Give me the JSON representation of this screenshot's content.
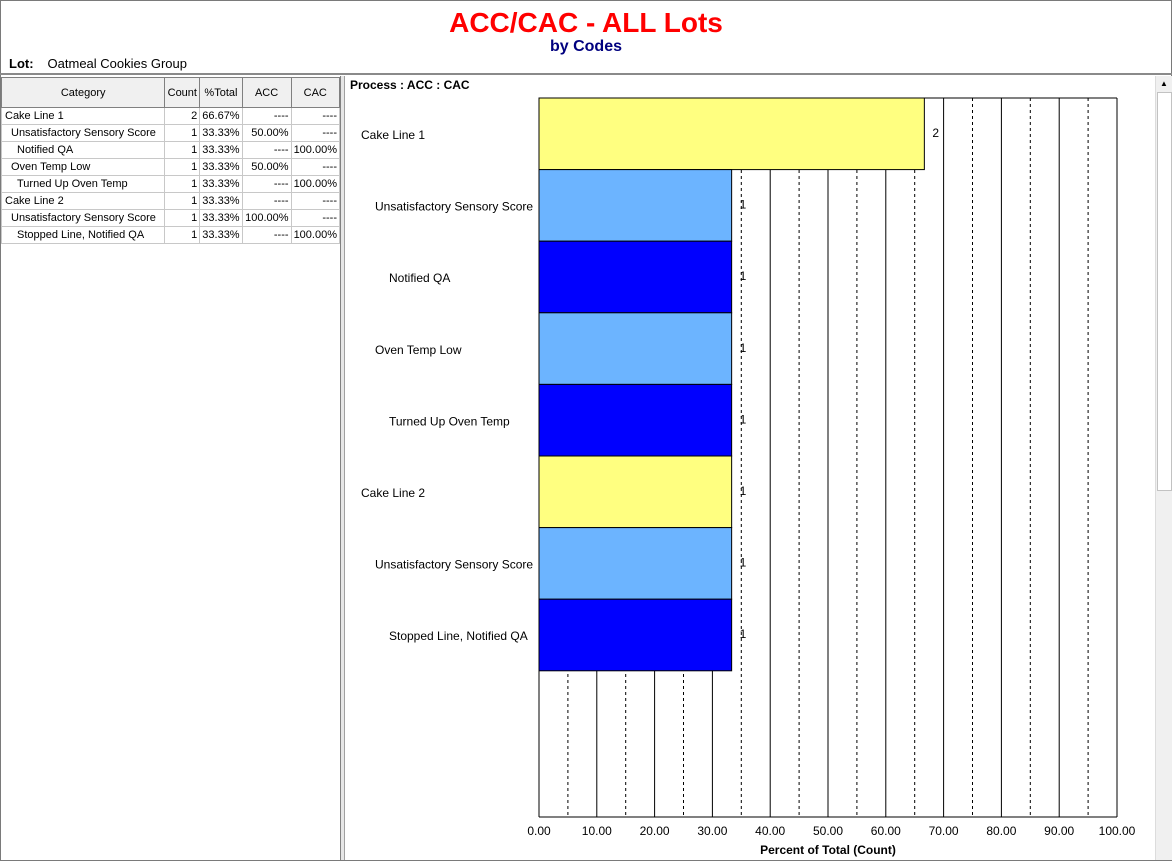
{
  "header": {
    "title": "ACC/CAC - ALL Lots",
    "subtitle": "by Codes",
    "lot_label": "Lot:",
    "lot_value": "Oatmeal Cookies Group"
  },
  "table": {
    "columns": [
      "Category",
      "Count",
      "%Total",
      "ACC",
      "CAC"
    ],
    "rows": [
      {
        "category": "Cake Line 1",
        "level": 0,
        "count": "2",
        "pct": "66.67%",
        "acc": "----",
        "cac": "----"
      },
      {
        "category": "Unsatisfactory Sensory Score",
        "level": 1,
        "count": "1",
        "pct": "33.33%",
        "acc": "50.00%",
        "cac": "----"
      },
      {
        "category": "Notified QA",
        "level": 2,
        "count": "1",
        "pct": "33.33%",
        "acc": "----",
        "cac": "100.00%"
      },
      {
        "category": "Oven Temp Low",
        "level": 1,
        "count": "1",
        "pct": "33.33%",
        "acc": "50.00%",
        "cac": "----"
      },
      {
        "category": "Turned Up Oven Temp",
        "level": 2,
        "count": "1",
        "pct": "33.33%",
        "acc": "----",
        "cac": "100.00%"
      },
      {
        "category": "Cake Line 2",
        "level": 0,
        "count": "1",
        "pct": "33.33%",
        "acc": "----",
        "cac": "----"
      },
      {
        "category": "Unsatisfactory Sensory Score",
        "level": 1,
        "count": "1",
        "pct": "33.33%",
        "acc": "100.00%",
        "cac": "----"
      },
      {
        "category": "Stopped Line, Notified QA",
        "level": 2,
        "count": "1",
        "pct": "33.33%",
        "acc": "----",
        "cac": "100.00%"
      }
    ]
  },
  "chart_panel": {
    "process_label": "Process : ACC : CAC"
  },
  "chart_data": {
    "type": "bar",
    "orientation": "horizontal",
    "categories": [
      "Cake Line 1",
      "Unsatisfactory Sensory Score",
      "Notified QA",
      "Oven Temp Low",
      "Turned Up Oven Temp",
      "Cake Line 2",
      "Unsatisfactory Sensory Score",
      "Stopped Line, Notified QA"
    ],
    "levels": [
      0,
      1,
      2,
      1,
      2,
      0,
      1,
      2
    ],
    "values": [
      66.67,
      33.33,
      33.33,
      33.33,
      33.33,
      33.33,
      33.33,
      33.33
    ],
    "data_labels": [
      "2",
      "1",
      "1",
      "1",
      "1",
      "1",
      "1",
      "1"
    ],
    "bar_colors": [
      "#ffff80",
      "#6cb4ff",
      "#0000ff",
      "#6cb4ff",
      "#0000ff",
      "#ffff80",
      "#6cb4ff",
      "#0000ff"
    ],
    "xlabel": "Percent of Total (Count)",
    "xlim": [
      0,
      100
    ],
    "xticks": [
      "0.00",
      "10.00",
      "20.00",
      "30.00",
      "40.00",
      "50.00",
      "60.00",
      "70.00",
      "80.00",
      "90.00",
      "100.00"
    ],
    "grid": "major solid, minor dashed"
  }
}
